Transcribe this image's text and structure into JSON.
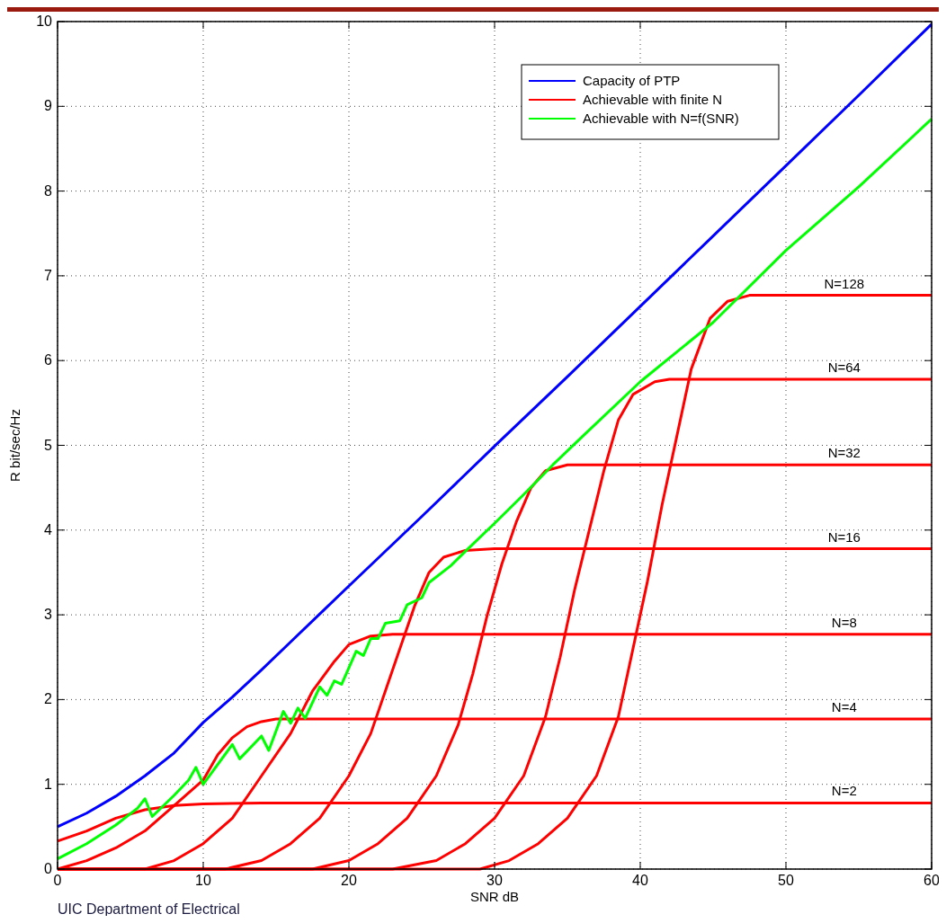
{
  "chart_data": {
    "type": "line",
    "xlabel": "SNR dB",
    "ylabel": "R bit/sec/Hz",
    "xlim": [
      0,
      60
    ],
    "ylim": [
      0,
      10
    ],
    "xticks": [
      0,
      10,
      20,
      30,
      40,
      50,
      60
    ],
    "yticks": [
      0,
      1,
      2,
      3,
      4,
      5,
      6,
      7,
      8,
      9,
      10
    ],
    "grid": true,
    "legend": "top right",
    "line_style": "solid",
    "marker": "none",
    "series": [
      {
        "name": "Capacity of PTP",
        "color": "#0000ff",
        "x": [
          0,
          2,
          4,
          6,
          8,
          10,
          12,
          14,
          16,
          18,
          20,
          25,
          30,
          35,
          40,
          45,
          50,
          55,
          60
        ],
        "values": [
          0.5,
          0.66,
          0.86,
          1.1,
          1.37,
          1.73,
          2.03,
          2.35,
          2.68,
          3.01,
          3.34,
          4.16,
          4.99,
          5.81,
          6.64,
          7.47,
          8.3,
          9.13,
          9.97
        ]
      },
      {
        "name": "Achievable with finite N",
        "color": "#ff0000",
        "x": [
          0,
          2,
          4,
          6,
          8,
          10,
          14,
          60
        ],
        "values": [
          0.33,
          0.45,
          0.6,
          0.7,
          0.75,
          0.77,
          0.78,
          0.78
        ]
      },
      {
        "color": "#ff0000",
        "x": [
          0,
          2,
          4,
          6,
          8,
          10,
          11,
          12,
          13,
          14,
          15,
          60
        ],
        "values": [
          0,
          0.1,
          0.25,
          0.45,
          0.75,
          1.05,
          1.35,
          1.55,
          1.68,
          1.74,
          1.77,
          1.77
        ]
      },
      {
        "color": "#ff0000",
        "x": [
          0,
          6,
          8,
          10,
          12,
          14,
          16,
          17.5,
          19,
          20,
          21.5,
          23,
          60
        ],
        "values": [
          0,
          0,
          0.1,
          0.3,
          0.6,
          1.1,
          1.6,
          2.1,
          2.45,
          2.65,
          2.75,
          2.77,
          2.77
        ]
      },
      {
        "color": "#ff0000",
        "x": [
          0,
          11.5,
          14,
          16,
          18,
          20,
          21.5,
          22.5,
          23.5,
          24.5,
          25.5,
          26.5,
          28,
          30,
          60
        ],
        "values": [
          0,
          0,
          0.1,
          0.3,
          0.6,
          1.1,
          1.6,
          2.1,
          2.6,
          3.1,
          3.5,
          3.68,
          3.76,
          3.78,
          3.78
        ]
      },
      {
        "color": "#ff0000",
        "x": [
          0,
          17.5,
          20,
          22,
          24,
          26,
          27.5,
          28.5,
          29.5,
          30.5,
          31.5,
          32.5,
          33.5,
          35,
          60
        ],
        "values": [
          0,
          0,
          0.1,
          0.3,
          0.6,
          1.1,
          1.7,
          2.3,
          3.0,
          3.6,
          4.1,
          4.5,
          4.7,
          4.77,
          4.77
        ]
      },
      {
        "color": "#ff0000",
        "x": [
          0,
          23,
          26,
          28,
          30,
          32,
          33.5,
          34.5,
          35.5,
          36.5,
          37.5,
          38.5,
          39.5,
          41,
          42,
          60
        ],
        "values": [
          0,
          0,
          0.1,
          0.3,
          0.6,
          1.1,
          1.8,
          2.5,
          3.3,
          4.0,
          4.7,
          5.3,
          5.6,
          5.75,
          5.78,
          5.78
        ]
      },
      {
        "color": "#ff0000",
        "x": [
          0,
          29,
          31,
          33,
          35,
          37,
          38.5,
          39.5,
          40.5,
          41.5,
          42.5,
          43.5,
          44.8,
          46,
          47.5,
          60
        ],
        "values": [
          0,
          0,
          0.1,
          0.3,
          0.6,
          1.1,
          1.8,
          2.6,
          3.4,
          4.3,
          5.1,
          5.9,
          6.5,
          6.7,
          6.77,
          6.77
        ]
      },
      {
        "name": "Achievable with N=f(SNR)",
        "color": "#00ff00",
        "x": [
          0,
          2,
          4,
          5.5,
          6,
          6.5,
          8,
          9,
          9.5,
          10,
          12,
          12.5,
          14,
          14.5,
          15.5,
          16,
          16.5,
          17,
          18,
          18.5,
          19,
          19.5,
          20.5,
          21,
          21.5,
          22,
          22.5,
          23.5,
          24,
          25,
          25.5,
          27,
          28,
          30,
          32,
          34,
          36,
          40,
          45,
          50,
          55,
          60
        ],
        "values": [
          0.12,
          0.3,
          0.52,
          0.72,
          0.83,
          0.62,
          0.87,
          1.05,
          1.2,
          1.0,
          1.47,
          1.3,
          1.57,
          1.4,
          1.86,
          1.72,
          1.9,
          1.78,
          2.15,
          2.05,
          2.22,
          2.18,
          2.57,
          2.52,
          2.72,
          2.72,
          2.9,
          2.93,
          3.12,
          3.2,
          3.38,
          3.58,
          3.75,
          4.08,
          4.42,
          4.77,
          5.1,
          5.75,
          6.45,
          7.3,
          8.05,
          8.85
        ]
      }
    ],
    "annotations": [
      {
        "text": "N=128",
        "y": 6.77
      },
      {
        "text": "N=64",
        "y": 5.78
      },
      {
        "text": "N=32",
        "y": 4.77
      },
      {
        "text": "N=16",
        "y": 3.78
      },
      {
        "text": "N=8",
        "y": 2.77
      },
      {
        "text": "N=4",
        "y": 1.77
      },
      {
        "text": "N=2",
        "y": 0.78
      },
      "UIC Department of Electrical"
    ]
  }
}
